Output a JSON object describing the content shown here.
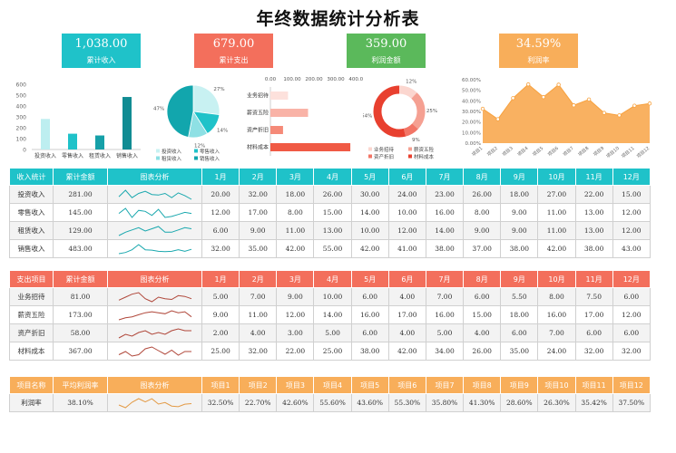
{
  "title": "年终数据统计分析表",
  "kpis": [
    {
      "value": "1,038.00",
      "label": "累计收入",
      "color": "#1fc2c9"
    },
    {
      "value": "679.00",
      "label": "累计支出",
      "color": "#f36f5c"
    },
    {
      "value": "359.00",
      "label": "利润金额",
      "color": "#5bb95b"
    },
    {
      "value": "34.59%",
      "label": "利润率",
      "color": "#f8ae5a"
    }
  ],
  "chart_data": [
    {
      "type": "bar",
      "categories": [
        "投资收入",
        "零售收入",
        "租赁收入",
        "销售收入"
      ],
      "values": [
        281,
        145,
        129,
        483
      ],
      "ylim": [
        0,
        600
      ],
      "yticks": [
        "0",
        "100",
        "200",
        "300",
        "400",
        "500",
        "600"
      ],
      "colors": [
        "#bdeef0",
        "#1fc2c9",
        "#16a0a8",
        "#118c93"
      ]
    },
    {
      "type": "pie",
      "categories": [
        "投资收入",
        "零售收入",
        "租赁收入",
        "销售收入"
      ],
      "values": [
        27,
        14,
        12,
        47
      ],
      "labels": [
        "27%",
        "14%",
        "12%",
        "47%"
      ],
      "legend": [
        "投资收入",
        "零售收入",
        "租赁收入",
        "销售收入"
      ]
    },
    {
      "type": "bar",
      "orientation": "horizontal",
      "categories": [
        "业务招待",
        "薪资五险",
        "资产折旧",
        "材料成本"
      ],
      "values": [
        81,
        173,
        58,
        367
      ],
      "xticks": [
        "0.00",
        "100.00",
        "200.00",
        "300.00",
        "400.00"
      ],
      "xlim": [
        0,
        400
      ]
    },
    {
      "type": "pie",
      "hole": true,
      "categories": [
        "业务招待",
        "薪资五险",
        "资产折旧",
        "材料成本"
      ],
      "values": [
        12,
        25,
        9,
        54
      ],
      "labels": [
        "12%",
        "25%",
        "9%",
        "54%"
      ],
      "legend": [
        "业务招待",
        "薪资五险",
        "资产折旧",
        "材料成本"
      ]
    },
    {
      "type": "area",
      "categories": [
        "项目1",
        "项目2",
        "项目3",
        "项目4",
        "项目5",
        "项目6",
        "项目7",
        "项目8",
        "项目9",
        "项目10",
        "项目11",
        "项目12"
      ],
      "values": [
        32.5,
        22.7,
        42.6,
        55.6,
        43.6,
        55.3,
        35.8,
        41.3,
        28.6,
        26.3,
        35.42,
        37.5
      ],
      "ylim": [
        0,
        60
      ],
      "yticks": [
        "0.00%",
        "10.00%",
        "20.00%",
        "30.00%",
        "40.00%",
        "50.00%",
        "60.00%"
      ],
      "xtick_labels": [
        "项目1",
        "项目2",
        "项目3",
        "项目4",
        "项目5",
        "项目6",
        "项目7",
        "项目8",
        "项目9",
        "项目10",
        "项目11",
        "项目12"
      ]
    }
  ],
  "income": {
    "color": "#1fc2c9",
    "headers": [
      "收入统计",
      "累计金额",
      "图表分析",
      "1月",
      "2月",
      "3月",
      "4月",
      "5月",
      "6月",
      "7月",
      "8月",
      "9月",
      "10月",
      "11月",
      "12月"
    ],
    "rows": [
      {
        "name": "投资收入",
        "total": "281.00",
        "months": [
          "20.00",
          "32.00",
          "18.00",
          "26.00",
          "30.00",
          "24.00",
          "23.00",
          "26.00",
          "18.00",
          "27.00",
          "22.00",
          "15.00"
        ]
      },
      {
        "name": "零售收入",
        "total": "145.00",
        "months": [
          "12.00",
          "17.00",
          "8.00",
          "15.00",
          "14.00",
          "10.00",
          "16.00",
          "8.00",
          "9.00",
          "11.00",
          "13.00",
          "12.00"
        ]
      },
      {
        "name": "租赁收入",
        "total": "129.00",
        "months": [
          "6.00",
          "9.00",
          "11.00",
          "13.00",
          "10.00",
          "12.00",
          "14.00",
          "9.00",
          "9.00",
          "11.00",
          "13.00",
          "12.00"
        ]
      },
      {
        "name": "销售收入",
        "total": "483.00",
        "months": [
          "32.00",
          "35.00",
          "42.00",
          "55.00",
          "42.00",
          "41.00",
          "38.00",
          "37.00",
          "38.00",
          "42.00",
          "38.00",
          "43.00"
        ]
      }
    ]
  },
  "expense": {
    "color": "#f36f5c",
    "headers": [
      "支出项目",
      "累计金额",
      "图表分析",
      "1月",
      "2月",
      "3月",
      "4月",
      "5月",
      "6月",
      "7月",
      "8月",
      "9月",
      "10月",
      "11月",
      "12月"
    ],
    "rows": [
      {
        "name": "业务招待",
        "total": "81.00",
        "months": [
          "5.00",
          "7.00",
          "9.00",
          "10.00",
          "6.00",
          "4.00",
          "7.00",
          "6.00",
          "5.50",
          "8.00",
          "7.50",
          "6.00"
        ]
      },
      {
        "name": "薪资五险",
        "total": "173.00",
        "months": [
          "9.00",
          "11.00",
          "12.00",
          "14.00",
          "16.00",
          "17.00",
          "16.00",
          "15.00",
          "18.00",
          "16.00",
          "17.00",
          "12.00"
        ]
      },
      {
        "name": "资产折旧",
        "total": "58.00",
        "months": [
          "2.00",
          "4.00",
          "3.00",
          "5.00",
          "6.00",
          "4.00",
          "5.00",
          "4.00",
          "6.00",
          "7.00",
          "6.00",
          "6.00"
        ]
      },
      {
        "name": "材料成本",
        "total": "367.00",
        "months": [
          "25.00",
          "32.00",
          "22.00",
          "25.00",
          "38.00",
          "42.00",
          "34.00",
          "26.00",
          "35.00",
          "24.00",
          "32.00",
          "32.00"
        ]
      }
    ]
  },
  "profit": {
    "color": "#f8ae5a",
    "headers": [
      "项目名称",
      "平均利润率",
      "图表分析",
      "项目1",
      "项目2",
      "项目3",
      "项目4",
      "项目5",
      "项目6",
      "项目7",
      "项目8",
      "项目9",
      "项目10",
      "项目11",
      "项目12"
    ],
    "rows": [
      {
        "name": "利润率",
        "total": "38.10%",
        "months": [
          "32.50%",
          "22.70%",
          "42.60%",
          "55.60%",
          "43.60%",
          "55.30%",
          "35.80%",
          "41.30%",
          "28.60%",
          "26.30%",
          "35.42%",
          "37.50%"
        ]
      }
    ]
  }
}
